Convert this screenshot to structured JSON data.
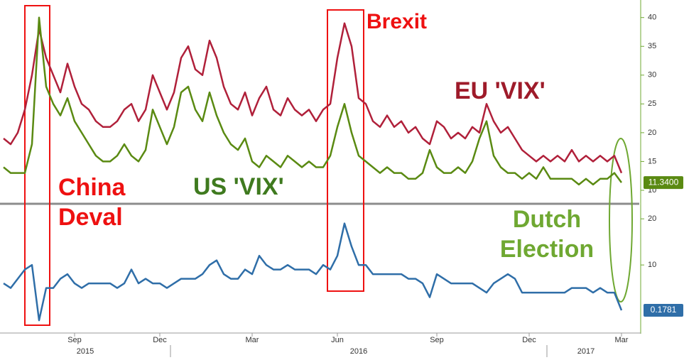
{
  "chart_data": [
    {
      "type": "line",
      "series": [
        {
          "name": "EU 'VIX'",
          "color": "#b0203a",
          "label_color": "#9e1b2a",
          "values": [
            19,
            18,
            20,
            24,
            30,
            38,
            33,
            30,
            27,
            32,
            28,
            25,
            24,
            22,
            21,
            21,
            22,
            24,
            25,
            22,
            24,
            30,
            27,
            24,
            27,
            33,
            35,
            31,
            30,
            36,
            33,
            28,
            25,
            24,
            27,
            23,
            26,
            28,
            24,
            23,
            26,
            24,
            23,
            24,
            22,
            24,
            25,
            33,
            39,
            35,
            26,
            25,
            22,
            21,
            23,
            21,
            22,
            20,
            21,
            19,
            18,
            22,
            21,
            19,
            20,
            19,
            21,
            20,
            25,
            22,
            20,
            21,
            19,
            17,
            16,
            15,
            16,
            15,
            16,
            15,
            17,
            15,
            16,
            15,
            16,
            15,
            16,
            13
          ]
        },
        {
          "name": "US 'VIX'",
          "color": "#5a8a12",
          "label_color": "#3f7a1f",
          "values": [
            14,
            13,
            13,
            13,
            18,
            40,
            28,
            25,
            23,
            26,
            22,
            20,
            18,
            16,
            15,
            15,
            16,
            18,
            16,
            15,
            17,
            24,
            21,
            18,
            21,
            27,
            28,
            24,
            22,
            27,
            23,
            20,
            18,
            17,
            19,
            15,
            14,
            16,
            15,
            14,
            16,
            15,
            14,
            15,
            14,
            14,
            16,
            21,
            25,
            20,
            16,
            15,
            14,
            13,
            14,
            13,
            13,
            12,
            12,
            13,
            17,
            14,
            13,
            13,
            14,
            13,
            15,
            19,
            22,
            16,
            14,
            13,
            13,
            12,
            13,
            12,
            14,
            12,
            12,
            12,
            12,
            11,
            12,
            11,
            12,
            12,
            13,
            11.34
          ],
          "value_labels": [
            null,
            null,
            null,
            null,
            null,
            null,
            null,
            null,
            null,
            null,
            null,
            null,
            null,
            null,
            null,
            null,
            null,
            null,
            null,
            null,
            null,
            null,
            null,
            null,
            null,
            null,
            null,
            null,
            null,
            null,
            null,
            null,
            null,
            null,
            null,
            null,
            null,
            null,
            null,
            null,
            null,
            null,
            null,
            null,
            null,
            null,
            null,
            null,
            null,
            null,
            null,
            null,
            null,
            null,
            null,
            null,
            null,
            null,
            null,
            null,
            null,
            null,
            null,
            null,
            null,
            null,
            null,
            null,
            null,
            null,
            null,
            null,
            null,
            null,
            null,
            null,
            null,
            null,
            null,
            null,
            null,
            null,
            null,
            null,
            null,
            null,
            null,
            "11.3400"
          ]
        }
      ],
      "ylim": [
        7.9,
        42.8
      ],
      "yticks": [
        10,
        15,
        20,
        25,
        30,
        35,
        40
      ],
      "annotations": [
        {
          "lines": [
            "China",
            "Deval"
          ],
          "color": "#ee1111"
        },
        {
          "lines": [
            "Brexit"
          ],
          "color": "#ee1111"
        },
        {
          "lines": [
            "Dutch",
            "Election"
          ],
          "color": "#6fa832"
        }
      ]
    },
    {
      "type": "line",
      "categories": [
        null,
        null,
        null,
        null,
        null,
        null,
        null,
        null,
        null,
        null,
        "Sep",
        null,
        null,
        null,
        null,
        null,
        null,
        null,
        null,
        null,
        null,
        null,
        "Dec",
        null,
        null,
        null,
        null,
        null,
        null,
        null,
        null,
        null,
        null,
        null,
        null,
        "Mar",
        null,
        null,
        null,
        null,
        null,
        null,
        null,
        null,
        null,
        null,
        null,
        "Jun",
        null,
        null,
        null,
        null,
        null,
        null,
        null,
        null,
        null,
        null,
        null,
        null,
        null,
        "Sep",
        null,
        null,
        null,
        null,
        null,
        null,
        null,
        null,
        null,
        null,
        null,
        null,
        "Dec",
        null,
        null,
        null,
        null,
        null,
        null,
        null,
        null,
        null,
        null,
        null,
        null,
        "Mar"
      ],
      "x_groups": [
        {
          "label": "2015",
          "from": 0,
          "to": 23
        },
        {
          "label": "2016",
          "from": 24,
          "to": 76
        },
        {
          "label": "2017",
          "from": 77,
          "to": 87
        }
      ],
      "series": [
        {
          "color": "#2f6ea8",
          "values": [
            6,
            5,
            7,
            9,
            10,
            -2,
            5,
            5,
            7,
            8,
            6,
            5,
            6,
            6,
            6,
            6,
            5,
            6,
            9,
            6,
            7,
            6,
            6,
            5,
            6,
            7,
            7,
            7,
            8,
            10,
            11,
            8,
            7,
            7,
            9,
            8,
            12,
            10,
            9,
            9,
            10,
            9,
            9,
            9,
            8,
            10,
            9,
            12,
            19,
            14,
            10,
            10,
            8,
            8,
            8,
            8,
            8,
            7,
            7,
            6,
            3,
            8,
            7,
            6,
            6,
            6,
            6,
            5,
            4,
            6,
            7,
            8,
            7,
            4,
            4,
            4,
            4,
            4,
            4,
            4,
            5,
            5,
            5,
            4,
            5,
            4,
            4,
            0.1781
          ]
        }
      ],
      "ylim": [
        -4.6,
        22.8
      ],
      "yticks": [
        10,
        20
      ]
    }
  ]
}
